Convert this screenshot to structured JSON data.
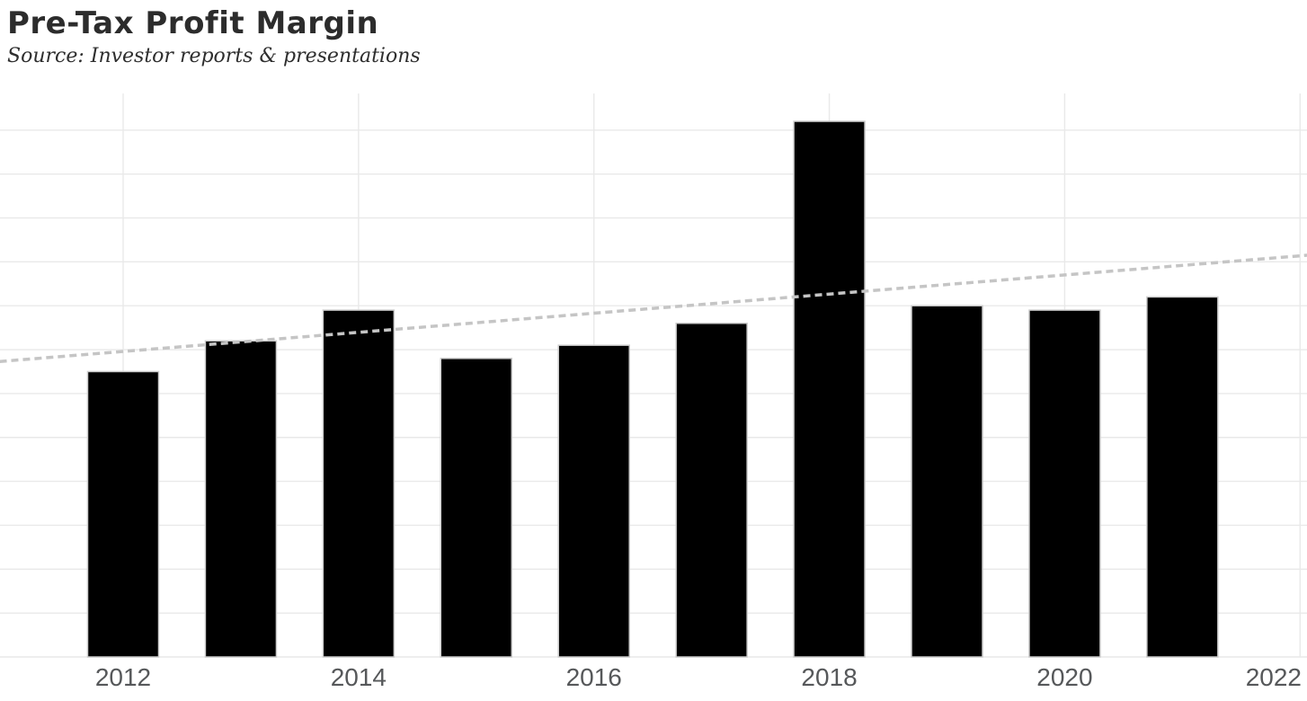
{
  "header": {
    "title": "Pre-Tax Profit Margin",
    "subtitle": "Source: Investor reports & presentations"
  },
  "chart_data": {
    "type": "bar",
    "title": "Pre-Tax Profit Margin",
    "subtitle": "Source: Investor reports & presentations",
    "categories": [
      "2012",
      "2013",
      "2014",
      "2015",
      "2016",
      "2017",
      "2018",
      "2019",
      "2020",
      "2021"
    ],
    "values": [
      6.5,
      7.2,
      7.9,
      6.8,
      7.1,
      7.6,
      12.2,
      8.0,
      7.9,
      8.2
    ],
    "values_note": "y-axis has no tick labels; values estimated in gridline units (1 unit per horizontal gridline, baseline = 0)",
    "xlabel": "",
    "ylabel": "",
    "x_axis": {
      "tick_labels": [
        "2012",
        "2014",
        "2016",
        "2018",
        "2020",
        "2022"
      ],
      "range_years": [
        2010.95,
        2022.06
      ]
    },
    "y_axis": {
      "tick_labels_visible": false,
      "gridline_interval": 1,
      "range": [
        0,
        12.8
      ]
    },
    "grid": true,
    "legend": "none",
    "trendline": {
      "style": "dashed-linear",
      "x_years": [
        2010.95,
        2022.06
      ],
      "y_values": [
        6.73,
        9.15
      ]
    },
    "colors": {
      "bar_fill": "#000000",
      "bar_stroke": "#cccccc",
      "gridline": "#e9e9e9",
      "trendline": "#c5c5c5",
      "axis_label": "#56585a",
      "title_text": "#2c2c2c",
      "background": "#ffffff"
    }
  }
}
